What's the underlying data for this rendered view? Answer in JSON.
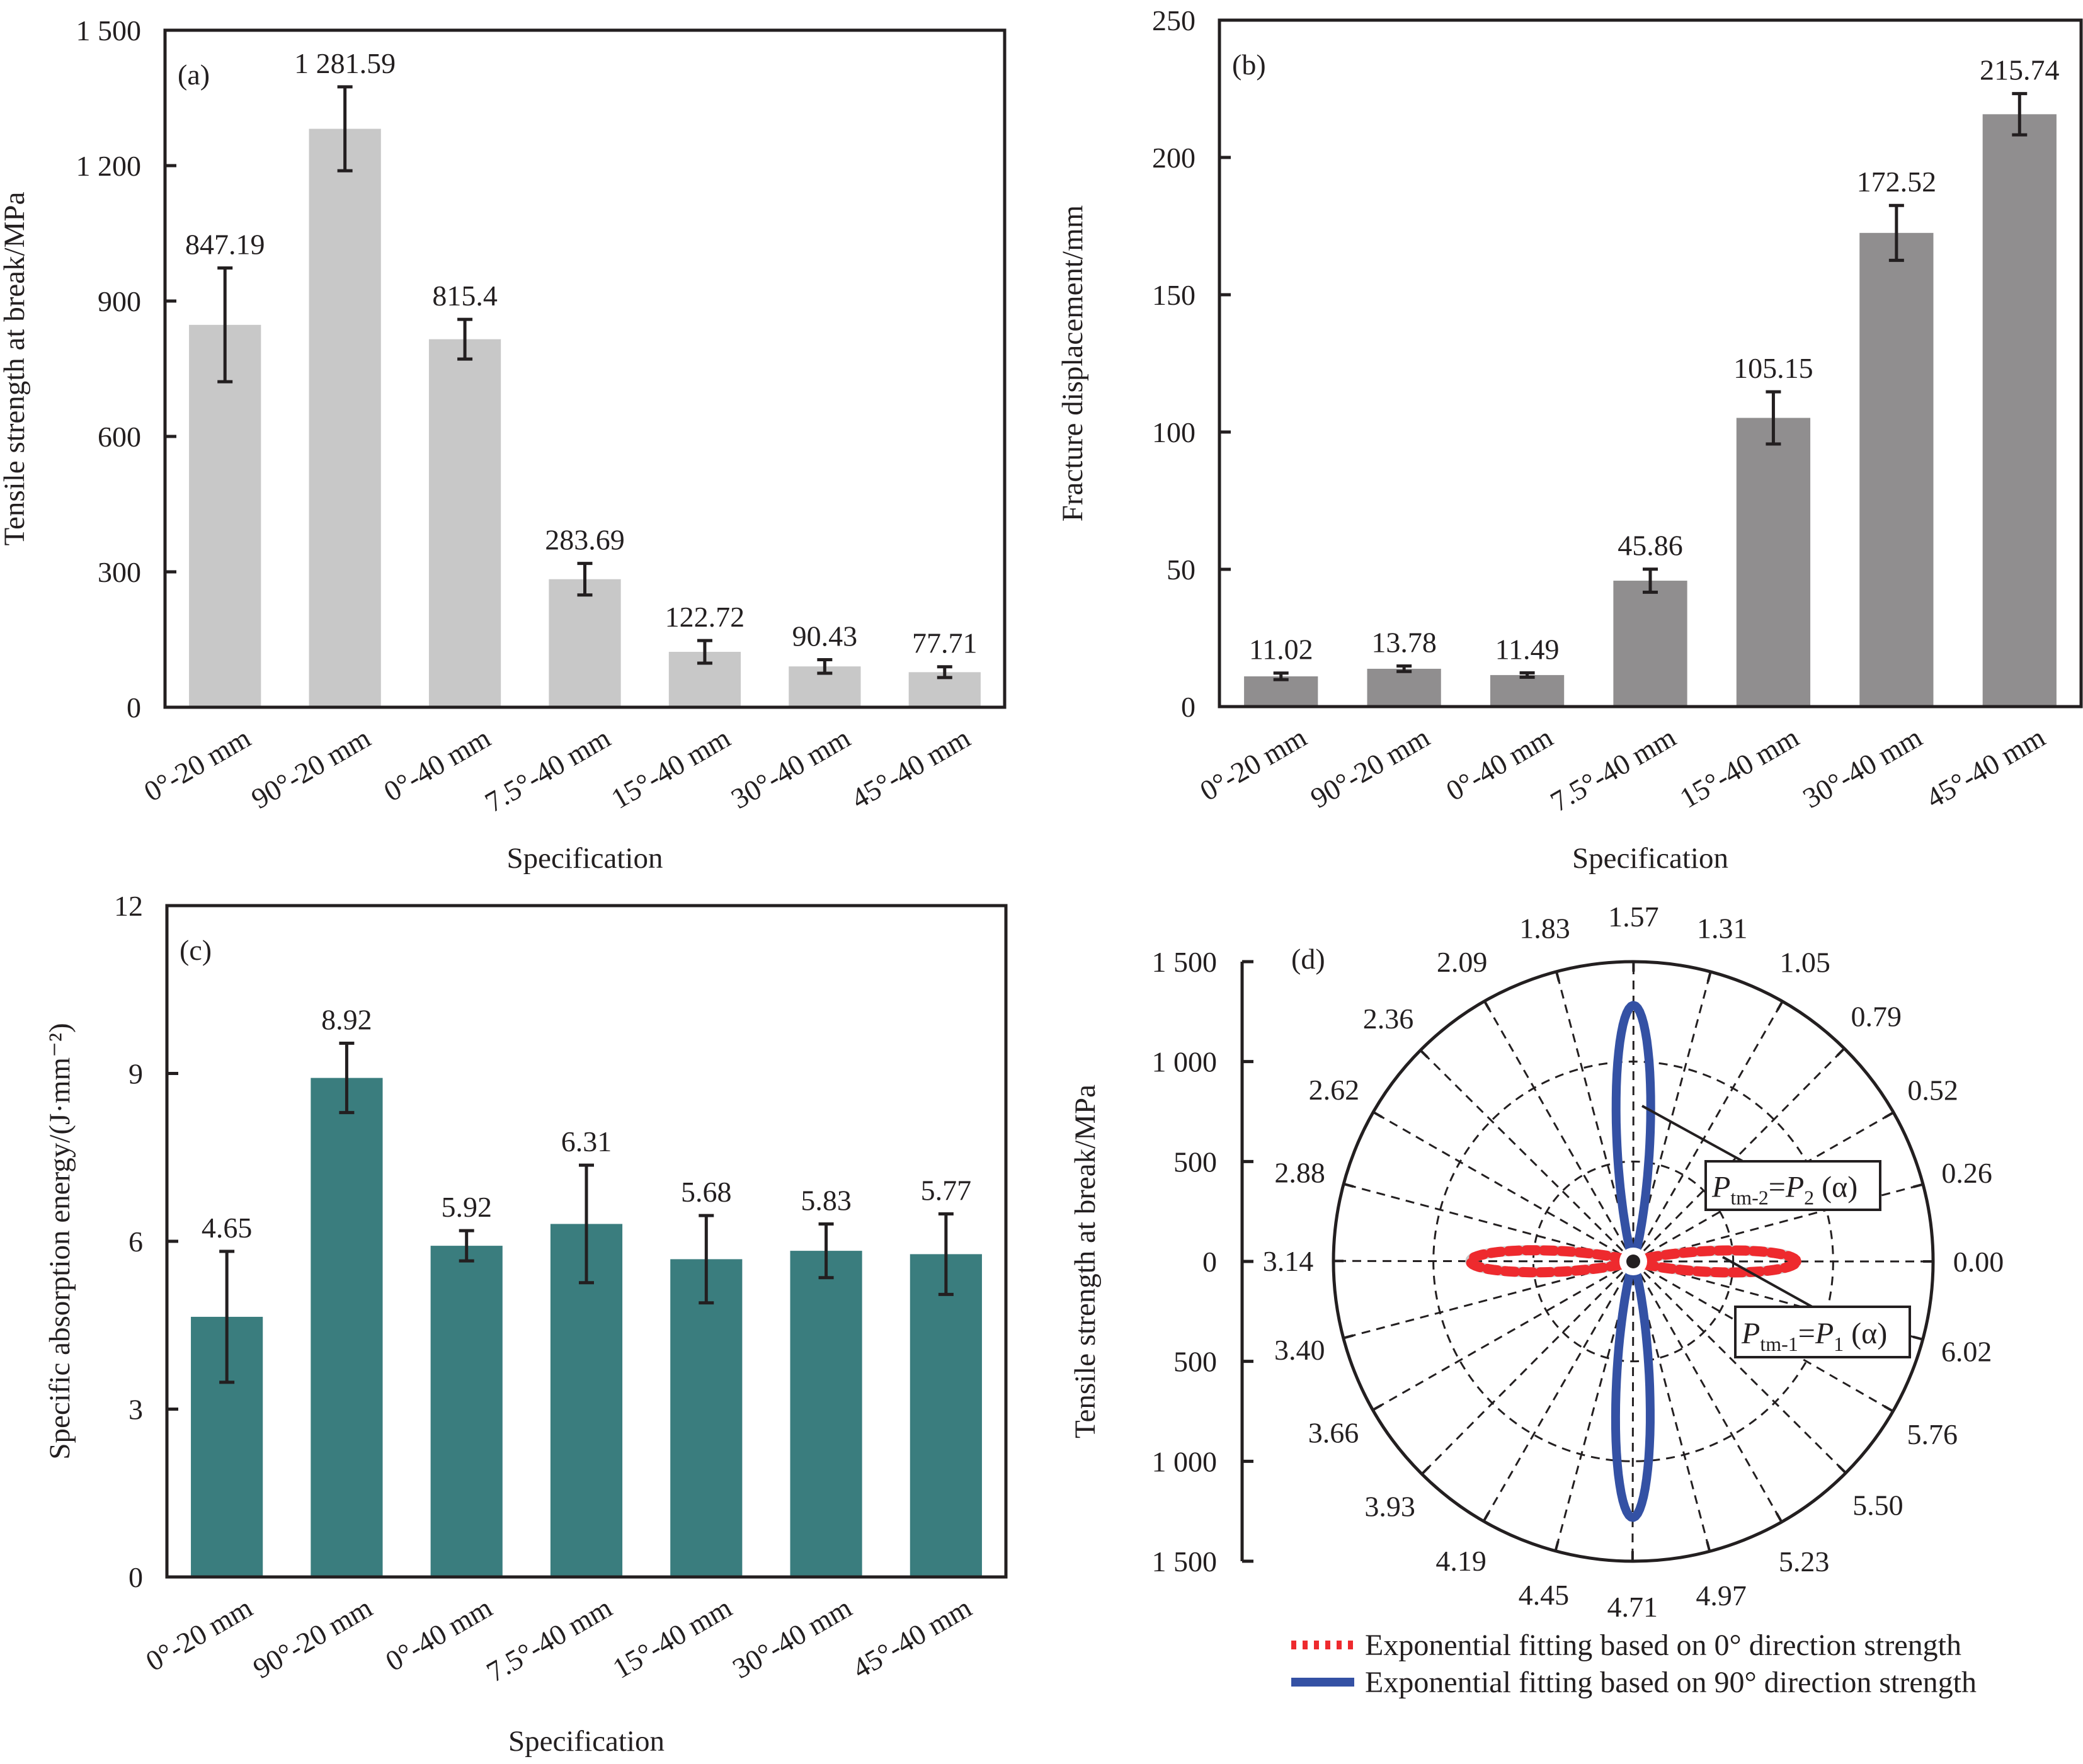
{
  "figure": {
    "panels": [
      "(a)",
      "(b)",
      "(c)",
      "(d)"
    ]
  },
  "chart_data": [
    {
      "id": "a",
      "type": "bar",
      "panel_label": "(a)",
      "title": "",
      "xlabel": "Specification",
      "ylabel": "Tensile strength at break/MPa",
      "categories": [
        "0°-20 mm",
        "90°-20 mm",
        "0°-40 mm",
        "7.5°-40 mm",
        "15°-40 mm",
        "30°-40 mm",
        "45°-40 mm"
      ],
      "values": [
        847.19,
        1281.59,
        815.4,
        283.69,
        122.72,
        90.43,
        77.71
      ],
      "value_labels": [
        "847.19",
        "1 281.59",
        "815.4",
        "283.69",
        "122.72",
        "90.43",
        "77.71"
      ],
      "errors": [
        126,
        93,
        44,
        35,
        25,
        15,
        12
      ],
      "ylim": [
        0,
        1500
      ],
      "yticks": [
        0,
        300,
        600,
        900,
        1200,
        1500
      ],
      "ytick_labels": [
        "0",
        "300",
        "600",
        "900",
        "1 200",
        "1 500"
      ],
      "bar_color": "#c8c8c8",
      "grid": false
    },
    {
      "id": "b",
      "type": "bar",
      "panel_label": "(b)",
      "title": "",
      "xlabel": "Specification",
      "ylabel": "Fracture displacement/mm",
      "categories": [
        "0°-20 mm",
        "90°-20 mm",
        "0°-40 mm",
        "7.5°-40 mm",
        "15°-40 mm",
        "30°-40 mm",
        "45°-40 mm"
      ],
      "values": [
        11.02,
        13.78,
        11.49,
        45.86,
        105.15,
        172.52,
        215.74
      ],
      "value_labels": [
        "11.02",
        "13.78",
        "11.49",
        "45.86",
        "105.15",
        "172.52",
        "215.74"
      ],
      "errors": [
        1.2,
        1.0,
        0.8,
        4.2,
        9.5,
        10,
        7.5
      ],
      "ylim": [
        0,
        250
      ],
      "yticks": [
        0,
        50,
        100,
        150,
        200,
        250
      ],
      "ytick_labels": [
        "0",
        "50",
        "100",
        "150",
        "200",
        "250"
      ],
      "bar_color": "#908e8f",
      "grid": false
    },
    {
      "id": "c",
      "type": "bar",
      "panel_label": "(c)",
      "title": "",
      "xlabel": "Specification",
      "ylabel": "Specific absorption energy/(J·mm⁻²)",
      "categories": [
        "0°-20 mm",
        "90°-20 mm",
        "0°-40 mm",
        "7.5°-40 mm",
        "15°-40 mm",
        "30°-40 mm",
        "45°-40 mm"
      ],
      "values": [
        4.65,
        8.92,
        5.92,
        6.31,
        5.68,
        5.83,
        5.77
      ],
      "value_labels": [
        "4.65",
        "8.92",
        "5.92",
        "6.31",
        "5.68",
        "5.83",
        "5.77"
      ],
      "errors": [
        1.17,
        0.62,
        0.27,
        1.05,
        0.78,
        0.48,
        0.72
      ],
      "ylim": [
        0,
        12
      ],
      "yticks": [
        0,
        3,
        6,
        9,
        12
      ],
      "ytick_labels": [
        "0",
        "3",
        "6",
        "9",
        "12"
      ],
      "bar_color": "#3a7d7e",
      "grid": false
    },
    {
      "id": "d",
      "type": "polar",
      "panel_label": "(d)",
      "title": "",
      "ylabel": "Tensile strength at break/MPa",
      "rlim": [
        0,
        1500
      ],
      "radial_ticks": [
        500,
        1000,
        1500
      ],
      "yaxis_ticks": [
        1500,
        1000,
        500,
        0,
        500,
        1000,
        1500
      ],
      "yaxis_tick_labels": [
        "1 500",
        "1 000",
        "500",
        "0",
        "500",
        "1 000",
        "1 500"
      ],
      "angular_ticks_rad": [
        0.0,
        0.26,
        0.52,
        0.79,
        1.05,
        1.31,
        1.57,
        1.83,
        2.09,
        2.36,
        2.62,
        2.88,
        3.14,
        3.4,
        3.66,
        3.93,
        4.19,
        4.45,
        4.71,
        4.97,
        5.23,
        5.5,
        5.76,
        6.02
      ],
      "angular_tick_labels": [
        "0.00",
        "0.26",
        "0.52",
        "0.79",
        "1.05",
        "1.31",
        "1.57",
        "1.83",
        "2.09",
        "2.36",
        "2.62",
        "2.88",
        "3.14",
        "3.40",
        "3.66",
        "3.93",
        "4.19",
        "4.45",
        "4.71",
        "4.97",
        "5.23",
        "5.50",
        "5.76",
        "6.02"
      ],
      "series": [
        {
          "name": "Exponential fitting based on 0° direction strength",
          "style": "dotted",
          "color": "#ee2a2e",
          "underlay_color": "#c8c8c8",
          "peak_value": 815.4,
          "peak_angle_rad": [
            0,
            3.14
          ],
          "decay_k": 40
        },
        {
          "name": "Exponential fitting based on 90° direction strength",
          "style": "solid",
          "color": "#3451a4",
          "peak_value": 1281.59,
          "peak_angle_rad": [
            1.57,
            4.71
          ],
          "decay_k": 40
        }
      ],
      "annotations": [
        {
          "main": "P",
          "sub": "tm-2",
          "eq": "=",
          "rhs": "P",
          "rhs_sub": "2",
          "arg": " (α)"
        },
        {
          "main": "P",
          "sub": "tm-1",
          "eq": "=",
          "rhs": "P",
          "rhs_sub": "1",
          "arg": " (α)"
        }
      ],
      "legend": {
        "position": "bottom",
        "entries": [
          "Exponential fitting based on 0° direction strength",
          "Exponential fitting based on 90° direction strength"
        ]
      }
    }
  ]
}
